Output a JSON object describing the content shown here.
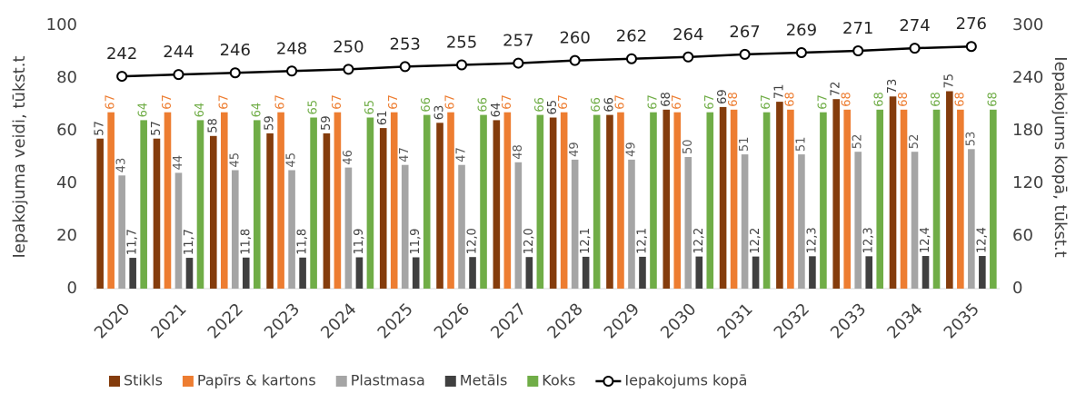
{
  "chart_data": {
    "type": "bar",
    "y_label": "Iepakojuma veidi, tūkst.t",
    "y2_label": "Iepakojums kopā, tūkst.t",
    "categories": [
      "2020",
      "2021",
      "2022",
      "2023",
      "2024",
      "2025",
      "2026",
      "2027",
      "2028",
      "2029",
      "2030",
      "2031",
      "2032",
      "2033",
      "2034",
      "2035"
    ],
    "series": [
      {
        "name": "Stikls",
        "color": "#843c0c",
        "label_color": "#404040",
        "values": [
          57,
          57,
          58,
          59,
          59,
          61,
          63,
          64,
          65,
          66,
          68,
          69,
          71,
          72,
          73,
          75
        ]
      },
      {
        "name": "Papīrs & kartons",
        "color": "#ed7d31",
        "label_color": "#ed7d31",
        "values": [
          67,
          67,
          67,
          67,
          67,
          67,
          67,
          67,
          67,
          67,
          67,
          68,
          68,
          68,
          68,
          68
        ]
      },
      {
        "name": "Plastmasa",
        "color": "#a5a5a5",
        "label_color": "#595959",
        "values": [
          43,
          44,
          45,
          45,
          46,
          47,
          47,
          48,
          49,
          49,
          50,
          51,
          51,
          52,
          52,
          53
        ]
      },
      {
        "name": "Metāls",
        "color": "#404040",
        "label_color": "#404040",
        "values": [
          11.7,
          11.7,
          11.8,
          11.8,
          11.9,
          11.9,
          12.0,
          12.0,
          12.1,
          12.1,
          12.2,
          12.2,
          12.3,
          12.3,
          12.4,
          12.4
        ],
        "value_labels": [
          "11,7",
          "11,7",
          "11,8",
          "11,8",
          "11,9",
          "11,9",
          "12,0",
          "12,0",
          "12,1",
          "12,1",
          "12,2",
          "12,2",
          "12,3",
          "12,3",
          "12,4",
          "12,4"
        ]
      },
      {
        "name": "Koks",
        "color": "#70ad47",
        "label_color": "#70ad47",
        "values": [
          64,
          64,
          64,
          65,
          65,
          66,
          66,
          66,
          66,
          67,
          67,
          67,
          67,
          68,
          68,
          68
        ]
      },
      {
        "name": "Iepakojums kopā",
        "type": "line",
        "axis": "y2",
        "color": "#000000",
        "label_color": "#262626",
        "values": [
          242,
          244,
          246,
          248,
          250,
          253,
          255,
          257,
          260,
          262,
          264,
          267,
          269,
          271,
          274,
          276
        ]
      }
    ],
    "ylim": [
      0,
      100
    ],
    "yticks": [
      0,
      20,
      40,
      60,
      80,
      100
    ],
    "y2lim": [
      0,
      300
    ],
    "y2ticks": [
      0,
      60,
      120,
      180,
      240,
      300
    ],
    "legend": "bottom"
  }
}
